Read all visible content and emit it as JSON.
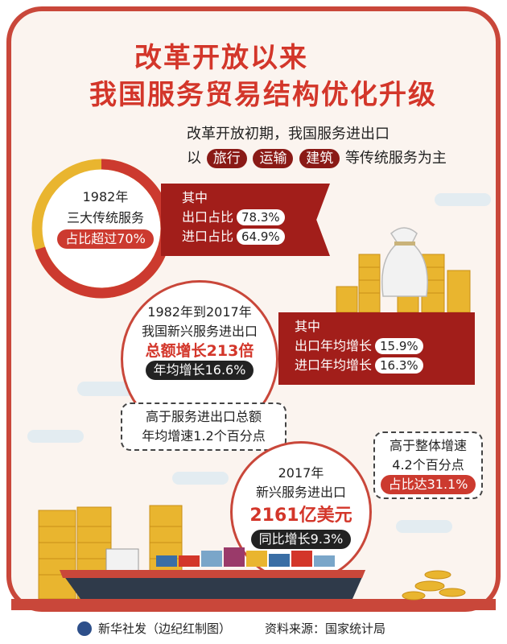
{
  "title": {
    "line1": "改革开放以来",
    "line2": "我国服务贸易结构优化升级"
  },
  "intro": {
    "line1": "改革开放初期，我国服务进出口",
    "prefix": "以",
    "chips": [
      "旅行",
      "运输",
      "建筑"
    ],
    "suffix": "等传统服务为主"
  },
  "section1982": {
    "year": "1982年",
    "label": "三大传统服务",
    "share": "占比超过70%",
    "ribbon_heading": "其中",
    "export_label": "出口占比",
    "export_value": "78.3%",
    "import_label": "进口占比",
    "import_value": "64.9%",
    "donut_share": 0.7
  },
  "growth": {
    "period": "1982年到2017年",
    "label": "我国新兴服务进出口",
    "total": "总额增长213倍",
    "annual": "年均增长16.6%",
    "ribbon_heading": "其中",
    "export_label": "出口年均增长",
    "export_value": "15.9%",
    "import_label": "进口年均增长",
    "import_value": "16.3%"
  },
  "bubble_left": {
    "line1": "高于服务进出口总额",
    "line2": "年均增速1.2个百分点"
  },
  "section2017": {
    "year": "2017年",
    "label": "新兴服务进出口",
    "amount": "2161亿美元",
    "yoy": "同比增长9.3%"
  },
  "bubble_right": {
    "line1": "高于整体增速",
    "line2": "4.2个百分点",
    "share": "占比达31.1%"
  },
  "footer": {
    "agency": "新华社发（边纪红制图）",
    "source": "资料来源：国家统计局"
  },
  "colors": {
    "red": "#d3362a",
    "dark_red": "#a21e1a",
    "gold": "#e9b52f",
    "frame": "#c9473a"
  }
}
